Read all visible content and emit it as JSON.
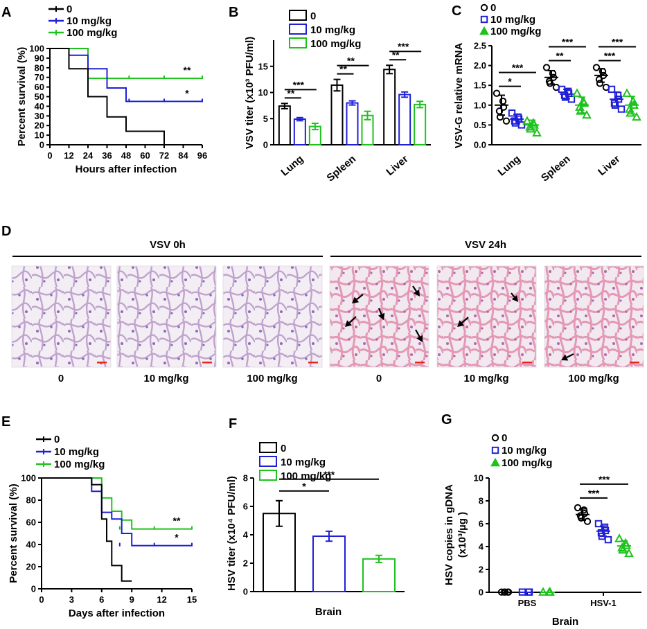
{
  "colors": {
    "c0": "#000000",
    "c10": "#1f1fd6",
    "c100": "#1dc21d",
    "tissue_bg": "#f3eef3",
    "tissue_pink": "#e79ab8",
    "tissue_purple": "#a58bc8",
    "arrow": "#000000",
    "scale_bar": "#e8261c"
  },
  "legend": [
    "0",
    "10 mg/kg",
    "100 mg/kg"
  ],
  "panels": {
    "A": "A",
    "B": "B",
    "C": "C",
    "D": "D",
    "E": "E",
    "F": "F",
    "G": "G"
  },
  "panel_d": {
    "group_labels": [
      "VSV 0h",
      "VSV 24h"
    ],
    "image_labels": [
      "0",
      "10 mg/kg",
      "100 mg/kg",
      "0",
      "10 mg/kg",
      "100 mg/kg"
    ]
  },
  "chart_data": [
    {
      "id": "A",
      "type": "line",
      "step": true,
      "xlabel": "Hours after infection",
      "ylabel": "Percent survival (%)",
      "xlim": [
        0,
        96
      ],
      "ylim": [
        0,
        100
      ],
      "xticks": [
        0,
        12,
        24,
        36,
        48,
        60,
        72,
        84,
        96
      ],
      "yticks": [
        0,
        10,
        20,
        30,
        40,
        50,
        60,
        70,
        80,
        90,
        100
      ],
      "series": [
        {
          "name": "0",
          "points": [
            [
              0,
              100
            ],
            [
              12,
              100
            ],
            [
              12,
              79
            ],
            [
              24,
              79
            ],
            [
              24,
              50
            ],
            [
              36,
              50
            ],
            [
              36,
              29
            ],
            [
              48,
              29
            ],
            [
              48,
              14
            ],
            [
              72,
              14
            ],
            [
              72,
              0
            ]
          ]
        },
        {
          "name": "10 mg/kg",
          "points": [
            [
              0,
              100
            ],
            [
              12,
              100
            ],
            [
              12,
              93
            ],
            [
              24,
              93
            ],
            [
              24,
              79
            ],
            [
              36,
              79
            ],
            [
              36,
              59
            ],
            [
              48,
              59
            ],
            [
              48,
              45
            ],
            [
              96,
              45
            ]
          ]
        },
        {
          "name": "100 mg/kg",
          "points": [
            [
              0,
              100
            ],
            [
              24,
              100
            ],
            [
              24,
              69
            ],
            [
              96,
              69
            ]
          ]
        }
      ],
      "significance": [
        {
          "series": "100 mg/kg",
          "label": "**"
        },
        {
          "series": "10 mg/kg",
          "label": "*"
        }
      ]
    },
    {
      "id": "B",
      "type": "bar",
      "ylabel": "VSV titer (x10³ PFU/ml)",
      "ylim": [
        0,
        20
      ],
      "yticks": [
        0,
        5,
        10,
        15
      ],
      "categories": [
        "Lung",
        "Spleen",
        "Liver"
      ],
      "series": [
        {
          "name": "0",
          "values": [
            7.4,
            11.4,
            14.4
          ],
          "errors": [
            0.5,
            1.1,
            0.8
          ]
        },
        {
          "name": "10 mg/kg",
          "values": [
            4.9,
            8.0,
            9.6
          ],
          "errors": [
            0.3,
            0.4,
            0.5
          ]
        },
        {
          "name": "100 mg/kg",
          "values": [
            3.5,
            5.6,
            7.7
          ],
          "errors": [
            0.6,
            0.8,
            0.6
          ]
        }
      ],
      "significance": [
        {
          "category": "Lung",
          "from": "0",
          "to": "10 mg/kg",
          "label": "**"
        },
        {
          "category": "Lung",
          "from": "0",
          "to": "100 mg/kg",
          "label": "***"
        },
        {
          "category": "Spleen",
          "from": "0",
          "to": "10 mg/kg",
          "label": "**"
        },
        {
          "category": "Spleen",
          "from": "0",
          "to": "100 mg/kg",
          "label": "**"
        },
        {
          "category": "Liver",
          "from": "0",
          "to": "10 mg/kg",
          "label": "**"
        },
        {
          "category": "Liver",
          "from": "0",
          "to": "100 mg/kg",
          "label": "***"
        }
      ]
    },
    {
      "id": "C",
      "type": "scatter",
      "ylabel": "VSV-G relative mRNA",
      "ylim": [
        0,
        2.5
      ],
      "yticks": [
        0.0,
        0.5,
        1.0,
        1.5,
        2.0,
        2.5
      ],
      "categories": [
        "Lung",
        "Spleen",
        "Liver"
      ],
      "series": [
        {
          "name": "0",
          "marker": "circle",
          "mean": [
            1.0,
            1.7,
            1.75
          ],
          "sd": [
            0.25,
            0.17,
            0.17
          ],
          "points": [
            [
              1.3,
              1.1,
              0.95,
              0.85,
              0.7,
              0.6
            ],
            [
              1.95,
              1.8,
              1.7,
              1.6,
              1.55,
              1.45
            ],
            [
              1.95,
              1.85,
              1.75,
              1.65,
              1.55,
              1.45
            ]
          ]
        },
        {
          "name": "10 mg/kg",
          "marker": "square",
          "mean": [
            0.65,
            1.28,
            1.15
          ],
          "sd": [
            0.12,
            0.12,
            0.18
          ],
          "points": [
            [
              0.8,
              0.7,
              0.65,
              0.6,
              0.55,
              0.5
            ],
            [
              1.4,
              1.35,
              1.3,
              1.25,
              1.2,
              1.15
            ],
            [
              1.4,
              1.25,
              1.15,
              1.05,
              1.0,
              0.9
            ]
          ]
        },
        {
          "name": "100 mg/kg",
          "marker": "triangle",
          "mean": [
            0.5,
            1.0,
            1.0
          ],
          "sd": [
            0.12,
            0.2,
            0.22
          ],
          "points": [
            [
              0.6,
              0.55,
              0.5,
              0.45,
              0.4,
              0.3
            ],
            [
              1.3,
              1.1,
              1.05,
              0.95,
              0.85,
              0.75
            ],
            [
              1.3,
              1.1,
              1.0,
              0.9,
              0.8,
              0.7
            ]
          ]
        }
      ],
      "significance": [
        {
          "category": "Lung",
          "from": "0",
          "to": "10 mg/kg",
          "label": "*"
        },
        {
          "category": "Lung",
          "from": "0",
          "to": "100 mg/kg",
          "label": "***"
        },
        {
          "category": "Spleen",
          "from": "0",
          "to": "10 mg/kg",
          "label": "**"
        },
        {
          "category": "Spleen",
          "from": "0",
          "to": "100 mg/kg",
          "label": "***"
        },
        {
          "category": "Liver",
          "from": "0",
          "to": "10 mg/kg",
          "label": "***"
        },
        {
          "category": "Liver",
          "from": "0",
          "to": "100 mg/kg",
          "label": "***"
        }
      ]
    },
    {
      "id": "E",
      "type": "line",
      "step": true,
      "xlabel": "Days after infection",
      "ylabel": "Percent survival (%)",
      "xlim": [
        0,
        15
      ],
      "ylim": [
        0,
        100
      ],
      "xticks": [
        0,
        3,
        6,
        9,
        12,
        15
      ],
      "yticks": [
        0,
        20,
        40,
        60,
        80,
        100
      ],
      "series": [
        {
          "name": "0",
          "points": [
            [
              0,
              100
            ],
            [
              5,
              100
            ],
            [
              5,
              94
            ],
            [
              6,
              94
            ],
            [
              6,
              63
            ],
            [
              6.5,
              63
            ],
            [
              6.5,
              43
            ],
            [
              7,
              43
            ],
            [
              7,
              21
            ],
            [
              8,
              21
            ],
            [
              8,
              7
            ],
            [
              9,
              7
            ]
          ]
        },
        {
          "name": "10 mg/kg",
          "points": [
            [
              0,
              100
            ],
            [
              5,
              100
            ],
            [
              5,
              88
            ],
            [
              6,
              88
            ],
            [
              6,
              69
            ],
            [
              7,
              69
            ],
            [
              7,
              63
            ],
            [
              8,
              63
            ],
            [
              8,
              50
            ],
            [
              9,
              50
            ],
            [
              9,
              39
            ],
            [
              15,
              39
            ]
          ]
        },
        {
          "name": "100 mg/kg",
          "points": [
            [
              0,
              100
            ],
            [
              6,
              100
            ],
            [
              6,
              82
            ],
            [
              7,
              82
            ],
            [
              7,
              70
            ],
            [
              8,
              70
            ],
            [
              8,
              62
            ],
            [
              9,
              62
            ],
            [
              9,
              54
            ],
            [
              15,
              54
            ]
          ]
        }
      ],
      "significance": [
        {
          "series": "100 mg/kg",
          "label": "**"
        },
        {
          "series": "10 mg/kg",
          "label": "*"
        }
      ]
    },
    {
      "id": "F",
      "type": "bar",
      "xlabel": "Brain",
      "ylabel": "HSV titer (x10⁴ PFU/ml)",
      "ylim": [
        0,
        8
      ],
      "yticks": [
        0,
        2,
        4,
        6,
        8
      ],
      "categories": [
        "Brain"
      ],
      "series": [
        {
          "name": "0",
          "values": [
            5.5
          ],
          "errors": [
            0.9
          ]
        },
        {
          "name": "10 mg/kg",
          "values": [
            3.9
          ],
          "errors": [
            0.35
          ]
        },
        {
          "name": "100 mg/kg",
          "values": [
            2.3
          ],
          "errors": [
            0.25
          ]
        }
      ],
      "significance": [
        {
          "from": "0",
          "to": "10 mg/kg",
          "label": "*"
        },
        {
          "from": "0",
          "to": "100 mg/kg",
          "label": "***"
        }
      ]
    },
    {
      "id": "G",
      "type": "scatter",
      "xlabel": "Brain",
      "ylabel": "HSV  copies in gDNA",
      "ylabel2": "(x10³/µg )",
      "ylim": [
        0,
        10
      ],
      "yticks": [
        0,
        2,
        4,
        6,
        8,
        10
      ],
      "categories": [
        "PBS",
        "HSV-1"
      ],
      "series": [
        {
          "name": "0",
          "marker": "circle",
          "mean": [
            0.0,
            6.8
          ],
          "sd": [
            0.0,
            0.5
          ],
          "points": [
            [
              0.02,
              0.02,
              0.02,
              0.02,
              0.02
            ],
            [
              7.4,
              7.2,
              6.9,
              6.7,
              6.5,
              6.2
            ]
          ]
        },
        {
          "name": "10 mg/kg",
          "marker": "square",
          "mean": [
            0.0,
            5.35
          ],
          "sd": [
            0.0,
            0.45
          ],
          "points": [
            [
              0.02,
              0.02,
              0.02
            ],
            [
              6.0,
              5.7,
              5.4,
              5.2,
              4.9,
              4.6
            ]
          ]
        },
        {
          "name": "100 mg/kg",
          "marker": "triangle",
          "mean": [
            0.0,
            4.05
          ],
          "sd": [
            0.0,
            0.45
          ],
          "points": [
            [
              0.02,
              0.02,
              0.02
            ],
            [
              4.7,
              4.3,
              4.1,
              3.9,
              3.7,
              3.4
            ]
          ]
        }
      ],
      "significance": [
        {
          "category": "HSV-1",
          "from": "0",
          "to": "10 mg/kg",
          "label": "***"
        },
        {
          "category": "HSV-1",
          "from": "0",
          "to": "100 mg/kg",
          "label": "***"
        }
      ]
    }
  ]
}
